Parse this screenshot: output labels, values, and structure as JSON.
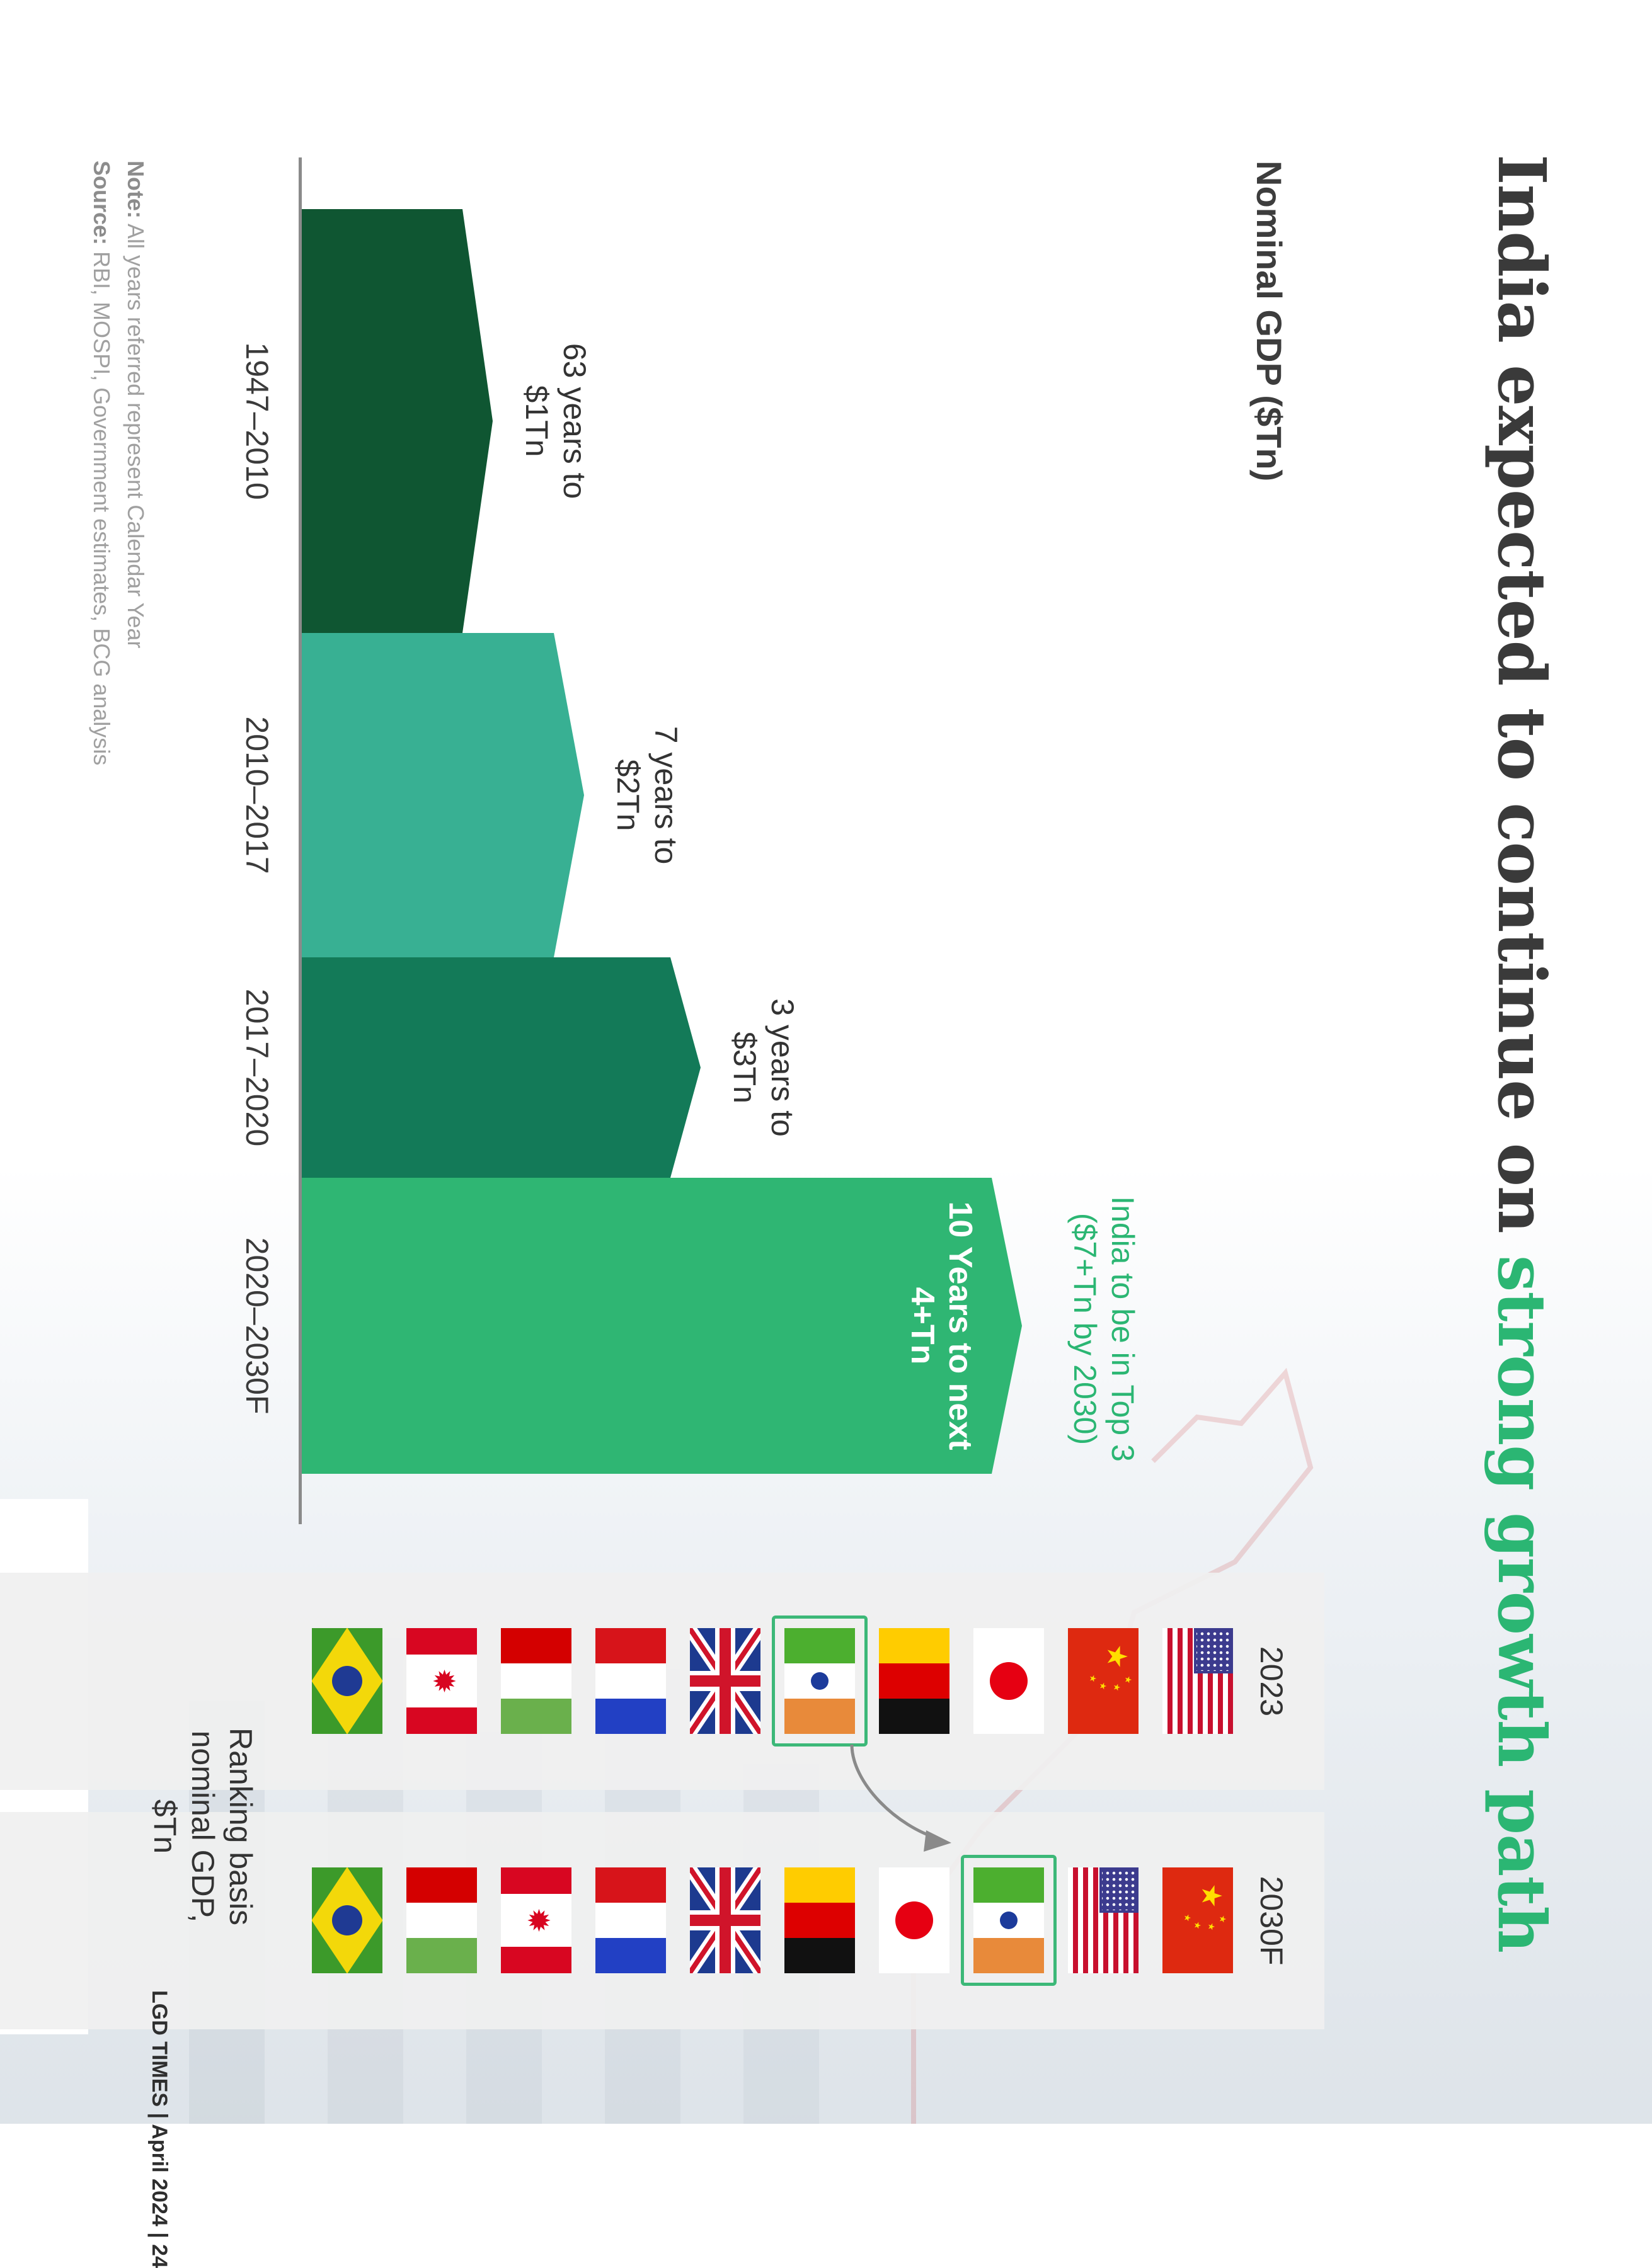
{
  "title_main": "India expected to continue on ",
  "title_highlight": "strong growth path",
  "subtitle": "Nominal GDP ($Tn)",
  "chart_data": {
    "type": "bar",
    "categories": [
      "1947–2010",
      "2010–2017",
      "2017–2020",
      "2020–2030F"
    ],
    "series": [
      {
        "values": [
          1,
          2,
          3,
          7
        ],
        "labels": [
          "63 years to\n$1Tn",
          "7 years to\n$2Tn",
          "3 years to\n$3Tn",
          "10 Years to next\n4+Tn"
        ],
        "colors": [
          "#0f5632",
          "#38b093",
          "#137a58",
          "#2fb673"
        ]
      }
    ],
    "callout": "India to be in Top 3\n($7+Tn by 2030)",
    "ylabel": "Nominal GDP ($Tn)",
    "xlabel": "",
    "grid": false,
    "legend": "none"
  },
  "ranking": {
    "label": "Ranking basis\nnominal GDP, $Tn",
    "y2023": {
      "label": "2023",
      "flags": [
        "usa-flag",
        "china-flag",
        "japan-flag",
        "germany-flag",
        "india-flag",
        "uk-flag",
        "france-flag",
        "italy-flag",
        "canada-flag",
        "brazil-flag"
      ],
      "highlight": "india-flag"
    },
    "y2030": {
      "label": "2030F",
      "flags": [
        "china-flag",
        "usa-flag",
        "india-flag",
        "japan-flag",
        "germany-flag",
        "uk-flag",
        "france-flag",
        "canada-flag",
        "italy-flag",
        "brazil-flag"
      ],
      "highlight": "india-flag"
    }
  },
  "note": {
    "note_label": "Note:",
    "note_text": " All years referred represent Calendar Year",
    "source_label": "Source:",
    "source_text": " RBI, MOSPI, Government estimates, BCG analysis"
  },
  "footer": "LGD TIMES | April 2024 | 24"
}
